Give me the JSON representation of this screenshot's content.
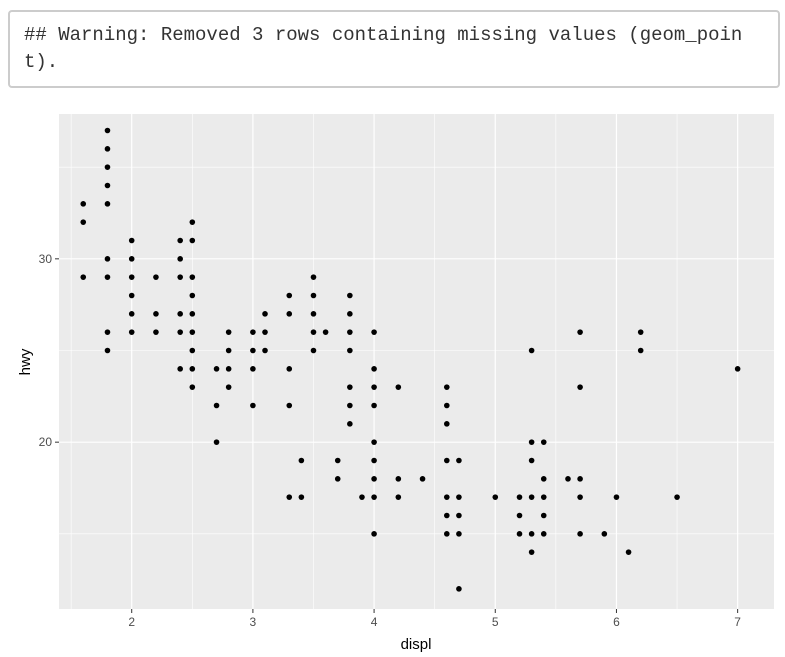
{
  "console": {
    "warning_text": "## Warning: Removed 3 rows containing missing values (geom_point)."
  },
  "chart_data": {
    "type": "scatter",
    "xlabel": "displ",
    "ylabel": "hwy",
    "xlim": [
      1.4,
      7.3
    ],
    "ylim": [
      10.9,
      37.9
    ],
    "x_ticks": [
      2,
      3,
      4,
      5,
      6,
      7
    ],
    "y_ticks": [
      20,
      30
    ],
    "grid": true,
    "colors": {
      "panel": "#ebebeb",
      "grid": "#ffffff",
      "point": "#000000"
    },
    "points": [
      [
        1.6,
        33
      ],
      [
        1.6,
        32
      ],
      [
        1.6,
        29
      ],
      [
        1.8,
        37
      ],
      [
        1.8,
        36
      ],
      [
        1.8,
        35
      ],
      [
        1.8,
        34
      ],
      [
        1.8,
        33
      ],
      [
        1.8,
        30
      ],
      [
        1.8,
        29
      ],
      [
        1.8,
        26
      ],
      [
        1.8,
        25
      ],
      [
        2.0,
        31
      ],
      [
        2.0,
        30
      ],
      [
        2.0,
        29
      ],
      [
        2.0,
        28
      ],
      [
        2.0,
        27
      ],
      [
        2.0,
        26
      ],
      [
        2.2,
        29
      ],
      [
        2.2,
        27
      ],
      [
        2.2,
        26
      ],
      [
        2.4,
        31
      ],
      [
        2.4,
        30
      ],
      [
        2.4,
        29
      ],
      [
        2.4,
        27
      ],
      [
        2.4,
        26
      ],
      [
        2.4,
        24
      ],
      [
        2.5,
        32
      ],
      [
        2.5,
        31
      ],
      [
        2.5,
        29
      ],
      [
        2.5,
        28
      ],
      [
        2.5,
        27
      ],
      [
        2.5,
        26
      ],
      [
        2.5,
        25
      ],
      [
        2.5,
        24
      ],
      [
        2.5,
        23
      ],
      [
        2.7,
        24
      ],
      [
        2.7,
        22
      ],
      [
        2.7,
        20
      ],
      [
        2.8,
        26
      ],
      [
        2.8,
        25
      ],
      [
        2.8,
        24
      ],
      [
        2.8,
        23
      ],
      [
        3.0,
        26
      ],
      [
        3.0,
        25
      ],
      [
        3.0,
        24
      ],
      [
        3.0,
        22
      ],
      [
        3.1,
        27
      ],
      [
        3.1,
        26
      ],
      [
        3.1,
        25
      ],
      [
        3.3,
        28
      ],
      [
        3.3,
        27
      ],
      [
        3.3,
        24
      ],
      [
        3.3,
        22
      ],
      [
        3.3,
        17
      ],
      [
        3.4,
        19
      ],
      [
        3.4,
        17
      ],
      [
        3.5,
        29
      ],
      [
        3.5,
        28
      ],
      [
        3.5,
        27
      ],
      [
        3.5,
        26
      ],
      [
        3.5,
        25
      ],
      [
        3.6,
        26
      ],
      [
        3.7,
        19
      ],
      [
        3.7,
        18
      ],
      [
        3.8,
        28
      ],
      [
        3.8,
        27
      ],
      [
        3.8,
        26
      ],
      [
        3.8,
        25
      ],
      [
        3.8,
        23
      ],
      [
        3.8,
        22
      ],
      [
        3.8,
        21
      ],
      [
        3.9,
        17
      ],
      [
        4.0,
        26
      ],
      [
        4.0,
        24
      ],
      [
        4.0,
        23
      ],
      [
        4.0,
        22
      ],
      [
        4.0,
        20
      ],
      [
        4.0,
        19
      ],
      [
        4.0,
        18
      ],
      [
        4.0,
        17
      ],
      [
        4.0,
        15
      ],
      [
        4.2,
        23
      ],
      [
        4.2,
        18
      ],
      [
        4.2,
        17
      ],
      [
        4.4,
        18
      ],
      [
        4.6,
        23
      ],
      [
        4.6,
        22
      ],
      [
        4.6,
        21
      ],
      [
        4.6,
        19
      ],
      [
        4.6,
        17
      ],
      [
        4.6,
        16
      ],
      [
        4.6,
        15
      ],
      [
        4.7,
        19
      ],
      [
        4.7,
        17
      ],
      [
        4.7,
        16
      ],
      [
        4.7,
        15
      ],
      [
        4.7,
        12
      ],
      [
        5.0,
        17
      ],
      [
        5.2,
        17
      ],
      [
        5.2,
        16
      ],
      [
        5.2,
        15
      ],
      [
        5.3,
        25
      ],
      [
        5.3,
        20
      ],
      [
        5.3,
        19
      ],
      [
        5.3,
        17
      ],
      [
        5.3,
        15
      ],
      [
        5.3,
        14
      ],
      [
        5.4,
        20
      ],
      [
        5.4,
        18
      ],
      [
        5.4,
        17
      ],
      [
        5.4,
        16
      ],
      [
        5.4,
        15
      ],
      [
        5.6,
        18
      ],
      [
        5.7,
        26
      ],
      [
        5.7,
        23
      ],
      [
        5.7,
        18
      ],
      [
        5.7,
        17
      ],
      [
        5.7,
        15
      ],
      [
        5.9,
        15
      ],
      [
        6.0,
        17
      ],
      [
        6.1,
        14
      ],
      [
        6.2,
        26
      ],
      [
        6.2,
        25
      ],
      [
        6.5,
        17
      ],
      [
        7.0,
        24
      ]
    ]
  }
}
